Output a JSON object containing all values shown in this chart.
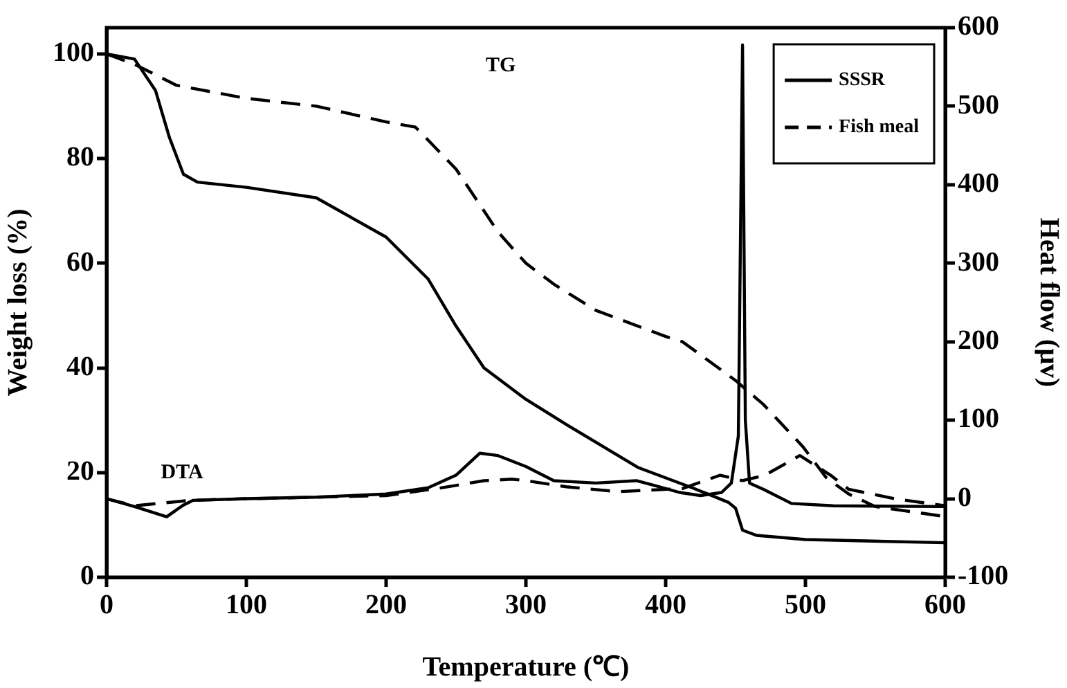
{
  "chart_data": {
    "type": "line",
    "xlabel": "Temperature (℃)",
    "ylabel": "Weight loss (%)",
    "y2label": "Heat flow (μv)",
    "xlim": [
      0,
      600
    ],
    "xticks": [
      0,
      100,
      200,
      300,
      400,
      500,
      600
    ],
    "ylim": [
      0,
      105
    ],
    "yticks": [
      0,
      20,
      40,
      60,
      80,
      100
    ],
    "y2lim": [
      -100,
      600
    ],
    "y2ticks": [
      -100,
      0,
      100,
      200,
      300,
      400,
      500,
      600
    ],
    "grid": false,
    "legend": "top right",
    "marker": "none",
    "annotations": [
      "TG",
      "DTA"
    ],
    "series": [
      {
        "name": "SSSR",
        "color": "#000000",
        "line_style": "solid",
        "x": [
          0,
          20,
          35,
          45,
          55,
          65,
          100,
          150,
          200,
          230,
          250,
          270,
          300,
          330,
          380,
          420,
          445,
          450,
          455,
          465,
          500,
          600
        ],
        "values": [
          100,
          99,
          93,
          84,
          77,
          75.5,
          74.5,
          72.5,
          65,
          57,
          48,
          40,
          34,
          29,
          21,
          17,
          14.3,
          13.2,
          9,
          8,
          7.2,
          6.6
        ]
      },
      {
        "name": "Fish meal",
        "color": "#000000",
        "line_style": "dashed",
        "x": [
          0,
          20,
          50,
          100,
          150,
          200,
          221,
          250,
          265,
          280,
          300,
          320,
          350,
          400,
          412,
          450,
          470,
          498,
          515,
          531,
          550,
          600
        ],
        "values": [
          100,
          98,
          94,
          91.5,
          90,
          87,
          86,
          78,
          72,
          66,
          60,
          56,
          51,
          46,
          45,
          37.6,
          33,
          25,
          19,
          15.9,
          13.5,
          11.6
        ]
      },
      {
        "color": "#000000",
        "line_style": "solid",
        "axis": "y2",
        "x": [
          0,
          20,
          43,
          55,
          62,
          100,
          150,
          200,
          230,
          250,
          267,
          280,
          300,
          320,
          350,
          379,
          392,
          410,
          425,
          440,
          447,
          452,
          455,
          457,
          460,
          470,
          490,
          520,
          600
        ],
        "values": [
          0,
          -10,
          -23,
          -8,
          -2,
          0,
          2,
          6,
          14,
          30,
          58,
          55,
          41,
          23,
          20,
          23,
          17,
          8,
          4,
          8,
          20,
          80,
          578,
          100,
          20,
          12,
          -6,
          -9,
          -10
        ]
      },
      {
        "color": "#000000",
        "line_style": "dashed",
        "axis": "y2",
        "x": [
          0,
          20,
          60,
          100,
          200,
          240,
          270,
          290,
          300,
          330,
          366,
          412,
          439,
          455,
          471,
          496,
          518,
          531,
          564,
          600
        ],
        "values": [
          0,
          -9,
          -2,
          0,
          4,
          14,
          23,
          25,
          23,
          15,
          9,
          13,
          30,
          23,
          30,
          55,
          30,
          12,
          0,
          -9
        ]
      }
    ]
  }
}
